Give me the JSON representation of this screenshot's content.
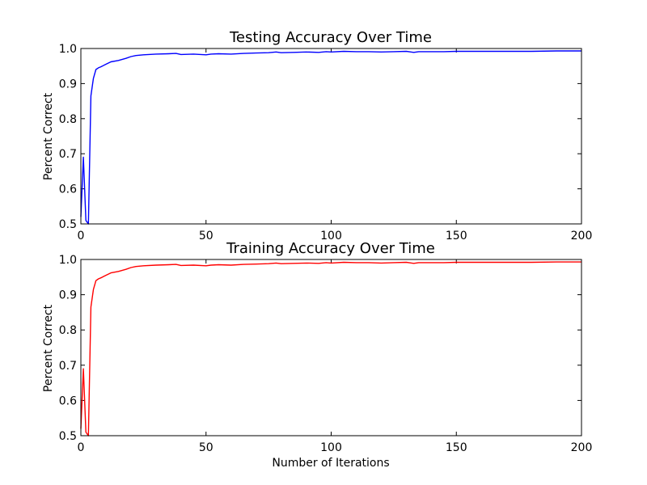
{
  "chart_data": [
    {
      "type": "line",
      "title": "Testing Accuracy Over Time",
      "xlabel": "",
      "ylabel": "Percent Correct",
      "xlim": [
        0,
        200
      ],
      "ylim": [
        0.5,
        1.0
      ],
      "xticks": [
        "0",
        "50",
        "100",
        "150",
        "200"
      ],
      "xtick_values": [
        0,
        50,
        100,
        150,
        200
      ],
      "yticks": [
        "0.5",
        "0.6",
        "0.7",
        "0.8",
        "0.9",
        "1.0"
      ],
      "ytick_values": [
        0.5,
        0.6,
        0.7,
        0.8,
        0.9,
        1.0
      ],
      "grid": false,
      "series": [
        {
          "color": "#0000ff",
          "x": [
            0,
            1,
            2,
            3,
            4,
            5,
            6,
            7,
            8,
            10,
            12,
            15,
            18,
            20,
            22,
            25,
            30,
            35,
            38,
            40,
            45,
            50,
            52,
            55,
            60,
            65,
            70,
            75,
            78,
            80,
            85,
            90,
            95,
            98,
            100,
            105,
            110,
            115,
            120,
            125,
            130,
            133,
            135,
            140,
            145,
            150,
            160,
            170,
            180,
            190,
            200
          ],
          "y": [
            0.52,
            0.69,
            0.51,
            0.5,
            0.865,
            0.915,
            0.94,
            0.945,
            0.948,
            0.955,
            0.962,
            0.966,
            0.972,
            0.977,
            0.98,
            0.982,
            0.984,
            0.985,
            0.986,
            0.983,
            0.984,
            0.982,
            0.984,
            0.985,
            0.984,
            0.986,
            0.987,
            0.988,
            0.99,
            0.988,
            0.989,
            0.99,
            0.989,
            0.991,
            0.99,
            0.992,
            0.991,
            0.991,
            0.99,
            0.991,
            0.992,
            0.989,
            0.991,
            0.991,
            0.991,
            0.992,
            0.992,
            0.992,
            0.992,
            0.993,
            0.993
          ]
        }
      ]
    },
    {
      "type": "line",
      "title": "Training Accuracy Over Time",
      "xlabel": "Number of Iterations",
      "ylabel": "Percent Correct",
      "xlim": [
        0,
        200
      ],
      "ylim": [
        0.5,
        1.0
      ],
      "xticks": [
        "0",
        "50",
        "100",
        "150",
        "200"
      ],
      "xtick_values": [
        0,
        50,
        100,
        150,
        200
      ],
      "yticks": [
        "0.5",
        "0.6",
        "0.7",
        "0.8",
        "0.9",
        "1.0"
      ],
      "ytick_values": [
        0.5,
        0.6,
        0.7,
        0.8,
        0.9,
        1.0
      ],
      "grid": false,
      "series": [
        {
          "color": "#ff0000",
          "x": [
            0,
            1,
            2,
            3,
            4,
            5,
            6,
            7,
            8,
            10,
            12,
            15,
            18,
            20,
            22,
            25,
            30,
            35,
            38,
            40,
            45,
            50,
            52,
            55,
            60,
            65,
            70,
            75,
            78,
            80,
            85,
            90,
            95,
            98,
            100,
            105,
            110,
            115,
            120,
            125,
            130,
            133,
            135,
            140,
            145,
            150,
            160,
            170,
            180,
            190,
            200
          ],
          "y": [
            0.52,
            0.69,
            0.51,
            0.5,
            0.865,
            0.915,
            0.94,
            0.945,
            0.948,
            0.955,
            0.962,
            0.966,
            0.972,
            0.977,
            0.98,
            0.982,
            0.984,
            0.985,
            0.986,
            0.983,
            0.984,
            0.982,
            0.984,
            0.985,
            0.984,
            0.986,
            0.987,
            0.988,
            0.99,
            0.988,
            0.989,
            0.99,
            0.989,
            0.991,
            0.99,
            0.992,
            0.991,
            0.991,
            0.99,
            0.991,
            0.992,
            0.989,
            0.991,
            0.991,
            0.991,
            0.992,
            0.992,
            0.992,
            0.992,
            0.993,
            0.993
          ]
        }
      ]
    }
  ]
}
